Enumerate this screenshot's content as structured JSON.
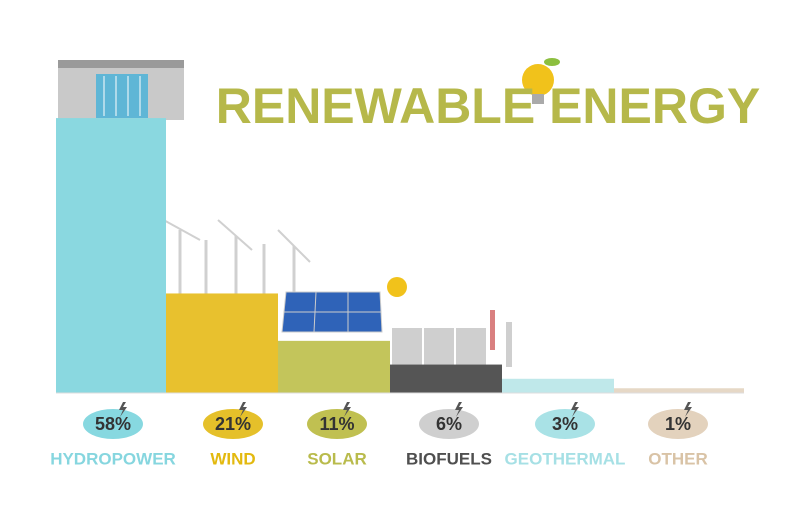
{
  "chart_data": {
    "type": "bar",
    "title": "RENEWABLE ENERGY",
    "categories": [
      "HYDROPOWER",
      "WIND",
      "SOLAR",
      "BIOFUELS",
      "GEOTHERMAL",
      "OTHER"
    ],
    "values": [
      58,
      21,
      11,
      6,
      3,
      1
    ],
    "value_labels": [
      "58%",
      "21%",
      "11%",
      "6%",
      "3%",
      "1%"
    ],
    "colors": [
      "#8ad8e0",
      "#e8c12e",
      "#c3c55b",
      "#555555",
      "#bfe8ea",
      "#e6d8c6"
    ],
    "label_colors": [
      "#86d6df",
      "#e3b90f",
      "#b9bb4c",
      "#4f4f4f",
      "#a6e0e5",
      "#d9c3a6"
    ],
    "pill_colors": [
      "#87d8e0",
      "#e5c02a",
      "#c0c051",
      "#cfcfcf",
      "#a9e2e6",
      "#e3d2bd"
    ]
  }
}
